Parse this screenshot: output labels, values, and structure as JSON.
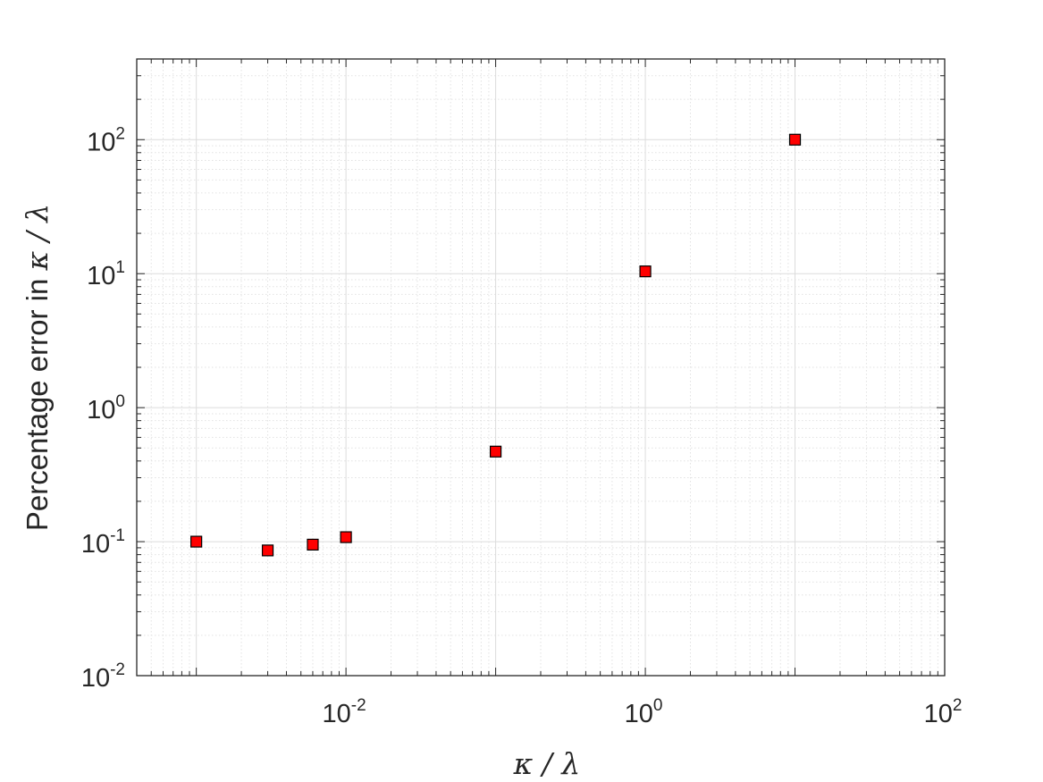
{
  "chart_data": {
    "type": "scatter",
    "xlabel": "κ / λ",
    "ylabel_text": "Percentage error in ",
    "ylabel_math": "κ / λ",
    "x_scale": "log",
    "y_scale": "log",
    "xlim": [
      0.0004,
      100
    ],
    "ylim": [
      0.01,
      400
    ],
    "x_ticks": [
      {
        "value": 0.01,
        "base": "10",
        "exp": "-2"
      },
      {
        "value": 1,
        "base": "10",
        "exp": "0"
      },
      {
        "value": 100,
        "base": "10",
        "exp": "2"
      }
    ],
    "y_ticks": [
      {
        "value": 0.01,
        "base": "10",
        "exp": "-2"
      },
      {
        "value": 0.1,
        "base": "10",
        "exp": "-1"
      },
      {
        "value": 1,
        "base": "10",
        "exp": "0"
      },
      {
        "value": 10,
        "base": "10",
        "exp": "1"
      },
      {
        "value": 100,
        "base": "10",
        "exp": "2"
      }
    ],
    "grid": true,
    "minor_grid": true,
    "series": [
      {
        "marker": "square",
        "color": "#ff0000",
        "edge_color": "#000000",
        "points": [
          {
            "x": 0.001,
            "y": 0.1
          },
          {
            "x": 0.003,
            "y": 0.086
          },
          {
            "x": 0.006,
            "y": 0.095
          },
          {
            "x": 0.01,
            "y": 0.108
          },
          {
            "x": 0.1,
            "y": 0.47
          },
          {
            "x": 1,
            "y": 10.4
          },
          {
            "x": 10,
            "y": 100
          }
        ]
      }
    ]
  }
}
